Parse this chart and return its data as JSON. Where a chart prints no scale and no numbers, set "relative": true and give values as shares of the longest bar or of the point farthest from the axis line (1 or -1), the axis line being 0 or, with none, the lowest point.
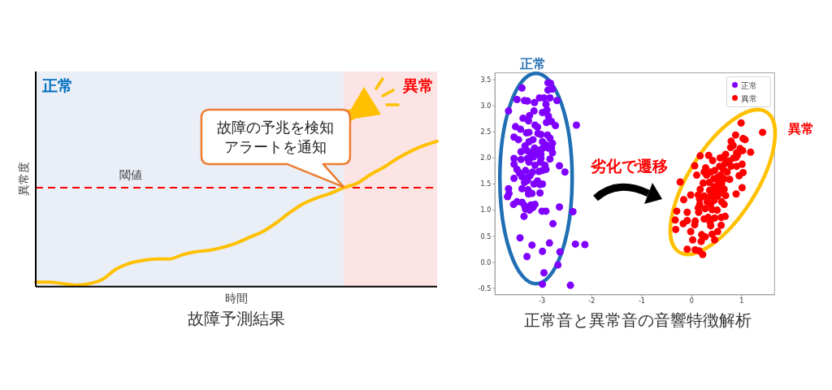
{
  "chart_data": [
    {
      "type": "line",
      "title": "故障予測結果",
      "xlabel": "時間",
      "ylabel": "異常度",
      "relative": true,
      "categories": [
        null,
        null,
        null,
        null,
        null,
        null,
        null,
        null,
        null,
        null,
        null,
        null,
        null,
        null,
        null,
        null,
        null,
        null,
        null,
        null,
        null,
        null,
        null,
        null,
        null,
        null,
        null,
        null,
        null,
        null,
        null
      ],
      "values": [
        0.03,
        0.03,
        0.02,
        0.01,
        0.02,
        0.05,
        0.12,
        0.16,
        0.18,
        0.19,
        0.19,
        0.22,
        0.24,
        0.25,
        0.27,
        0.3,
        0.34,
        0.38,
        0.44,
        0.51,
        0.57,
        0.61,
        0.64,
        0.68,
        0.71,
        0.77,
        0.82,
        0.88,
        0.93,
        0.97,
        1
      ],
      "color": "#ffc000",
      "ref_lines": [
        {
          "axis": "y",
          "value": 0.68,
          "label": "閾値",
          "color": "#ff0000",
          "line_style": "dashed"
        }
      ],
      "annotations": [
        "正常",
        "異常",
        {
          "text": "故障の予兆を検知アラートを通知",
          "y": 0.68
        }
      ]
    },
    {
      "type": "scatter",
      "title": "正常音と異常音の音響特徴解析",
      "xlim": [
        -3.94,
        1.66
      ],
      "ylim": [
        -0.62,
        3.63
      ],
      "xticks": [
        -3,
        -2,
        -1,
        0,
        1
      ],
      "yticks": [
        -0.5,
        {
          "value": 0,
          "label": "0.0"
        },
        0.5,
        {
          "value": 1,
          "label": "1.0"
        },
        1.5,
        {
          "value": 2,
          "label": "2.0"
        },
        2.5,
        {
          "value": 3,
          "label": "3.0"
        },
        3.5
      ],
      "legend": "top right",
      "marker": "circle",
      "series": [
        {
          "name": "正常",
          "color": "#8000ff",
          "x": [
            -3.4,
            -2.88,
            -2.83,
            -2.79,
            -2.88,
            -3.5,
            -3.35,
            -3.29,
            -3.05,
            -2.96,
            -2.84,
            -2.7,
            -3.15,
            -2.92,
            -3.67,
            -3.16,
            -2.99,
            -2.9,
            -2.87,
            -3.25,
            -3.38,
            -3.27,
            -2.81,
            -2.91,
            -2.73,
            -2.31,
            -3.53,
            -3.43,
            -3.14,
            -3.09,
            -3.26,
            -3.08,
            -3.02,
            -3.31,
            -3.56,
            -3.47,
            -2.89,
            -2.84,
            -3.18,
            -2.99,
            -2.92,
            -2.79,
            -3.26,
            -3.34,
            -3.15,
            -3.08,
            -2.99,
            -2.87,
            -2.81,
            -3.3,
            -3.23,
            -3.11,
            -3.02,
            -2.79,
            -3.42,
            -3.56,
            -3.42,
            -3.29,
            -3.17,
            -3.02,
            -2.84,
            -3.26,
            -3.14,
            -3.03,
            -2.94,
            -2.65,
            -3.56,
            -3.5,
            -3.45,
            -3.33,
            -3.19,
            -3.06,
            -2.99,
            -2.92,
            -2.54,
            -3.56,
            -3.4,
            -3.3,
            -3.24,
            -3.09,
            -3.16,
            -3.04,
            -3.29,
            -3.35,
            -2.99,
            -3.67,
            -3.4,
            -3.28,
            -3.66,
            -3.69,
            -3.27,
            -3.2,
            -3.04,
            -3.5,
            -3.57,
            -3.4,
            -3.35,
            -3.22,
            -3.14,
            -3.33,
            -3.25,
            -3.18,
            -3.0,
            -2.92,
            -3.36,
            -2.65,
            -2.38,
            -2.78,
            -3.44,
            -3.2,
            -2.85,
            -2.33,
            -2.14,
            -3.3,
            -2.99,
            -2.64,
            -2.68,
            -2.96,
            -2.99,
            -2.43
          ],
          "values": [
            3.34,
            3.44,
            3.43,
            3.32,
            3.3,
            3.12,
            3.1,
            3.09,
            3.15,
            3.15,
            3.15,
            3.1,
            3.06,
            3.03,
            2.9,
            2.9,
            2.87,
            2.92,
            2.8,
            2.81,
            2.76,
            2.71,
            2.7,
            2.68,
            2.62,
            2.63,
            2.6,
            2.55,
            2.63,
            2.59,
            2.49,
            2.47,
            2.45,
            2.48,
            2.4,
            2.35,
            2.44,
            2.38,
            2.35,
            2.31,
            2.25,
            2.28,
            2.31,
            2.23,
            2.19,
            2.15,
            2.18,
            2.19,
            2.19,
            2.14,
            2.1,
            2.07,
            2.07,
            2.1,
            2.12,
            1.99,
            1.97,
            1.99,
            2.02,
            1.99,
            1.98,
            1.92,
            1.86,
            1.92,
            1.86,
            1.85,
            1.88,
            1.78,
            1.71,
            1.76,
            1.73,
            1.74,
            1.76,
            1.78,
            1.73,
            1.61,
            1.64,
            1.62,
            1.66,
            1.56,
            1.5,
            1.49,
            1.57,
            1.53,
            1.5,
            1.41,
            1.41,
            1.39,
            1.32,
            1.26,
            1.31,
            1.32,
            1.33,
            1.16,
            1.11,
            1.15,
            1.09,
            1.1,
            1.11,
            1.02,
            1.0,
            1.05,
            0.98,
            0.98,
            0.88,
            1.06,
            0.97,
            0.74,
            0.47,
            0.33,
            0.37,
            0.35,
            0.34,
            0.11,
            0.21,
            0.2,
            -0.05,
            -0.2,
            -0.42,
            -0.44
          ]
        },
        {
          "name": "異常",
          "color": "#ff0000",
          "x": [
            0.99,
            1.42,
            0.88,
            1.03,
            1.07,
            0.79,
            0.83,
            0.78,
            0.97,
            1.02,
            1.18,
            0.68,
            0.9,
            0.92,
            0.17,
            0.34,
            0.57,
            0.64,
            0.84,
            0.89,
            0.42,
            0.75,
            0.67,
            1.01,
            0.06,
            0.28,
            0.56,
            0.79,
            0.9,
            0.63,
            0.25,
            0.38,
            0.46,
            0.71,
            1.03,
            0.1,
            0.3,
            0.58,
            0.95,
            0.44,
            0.52,
            0.65,
            0.76,
            -0.23,
            0.23,
            0.35,
            0.54,
            0.6,
            1.01,
            0.45,
            0.53,
            0.65,
            0.17,
            0.36,
            0.46,
            0.6,
            0.89,
            -0.02,
            0.13,
            0.25,
            0.38,
            0.52,
            0.68,
            -0.16,
            0.16,
            0.31,
            0.45,
            0.6,
            0.16,
            0.38,
            0.65,
            0.13,
            0.27,
            0.41,
            0.51,
            -0.3,
            -0.09,
            0.14,
            0.67,
            0.33,
            0.46,
            0.59,
            -0.33,
            -0.09,
            0.07,
            0.25,
            0.37,
            -0.17,
            0.06,
            0.38,
            0.59,
            -0.32,
            -0.02,
            0.2,
            0.41,
            0.52,
            0.27,
            0.46,
            0.02,
            0.19,
            -0.09,
            0.07,
            0.15,
            0.22
          ],
          "values": [
            2.67,
            2.49,
            2.44,
            2.37,
            2.35,
            2.32,
            2.24,
            2.2,
            2.18,
            2.14,
            2.11,
            2.07,
            2.1,
            2.06,
            2.04,
            2.05,
            2.0,
            2.02,
            2.0,
            2.01,
            1.95,
            1.94,
            1.9,
            1.88,
            1.85,
            1.81,
            1.84,
            1.84,
            1.84,
            1.79,
            1.73,
            1.73,
            1.76,
            1.73,
            1.72,
            1.67,
            1.67,
            1.67,
            1.66,
            1.6,
            1.63,
            1.6,
            1.59,
            1.54,
            1.52,
            1.53,
            1.54,
            1.5,
            1.43,
            1.45,
            1.42,
            1.4,
            1.4,
            1.38,
            1.34,
            1.34,
            1.31,
            1.29,
            1.29,
            1.27,
            1.27,
            1.27,
            1.28,
            1.2,
            1.21,
            1.16,
            1.19,
            1.16,
            1.11,
            1.11,
            1.11,
            1.04,
            1.03,
            1.01,
            1.0,
            0.98,
            0.96,
            0.96,
            0.88,
            0.86,
            0.85,
            0.86,
            0.81,
            0.8,
            0.79,
            0.83,
            0.77,
            0.74,
            0.72,
            0.7,
            0.71,
            0.63,
            0.59,
            0.53,
            0.54,
            0.59,
            0.49,
            0.43,
            0.43,
            0.4,
            0.25,
            0.24,
            0.22,
            0.15
          ]
        }
      ],
      "annotations": [
        "正常",
        "異常",
        "劣化で遷移"
      ]
    }
  ]
}
